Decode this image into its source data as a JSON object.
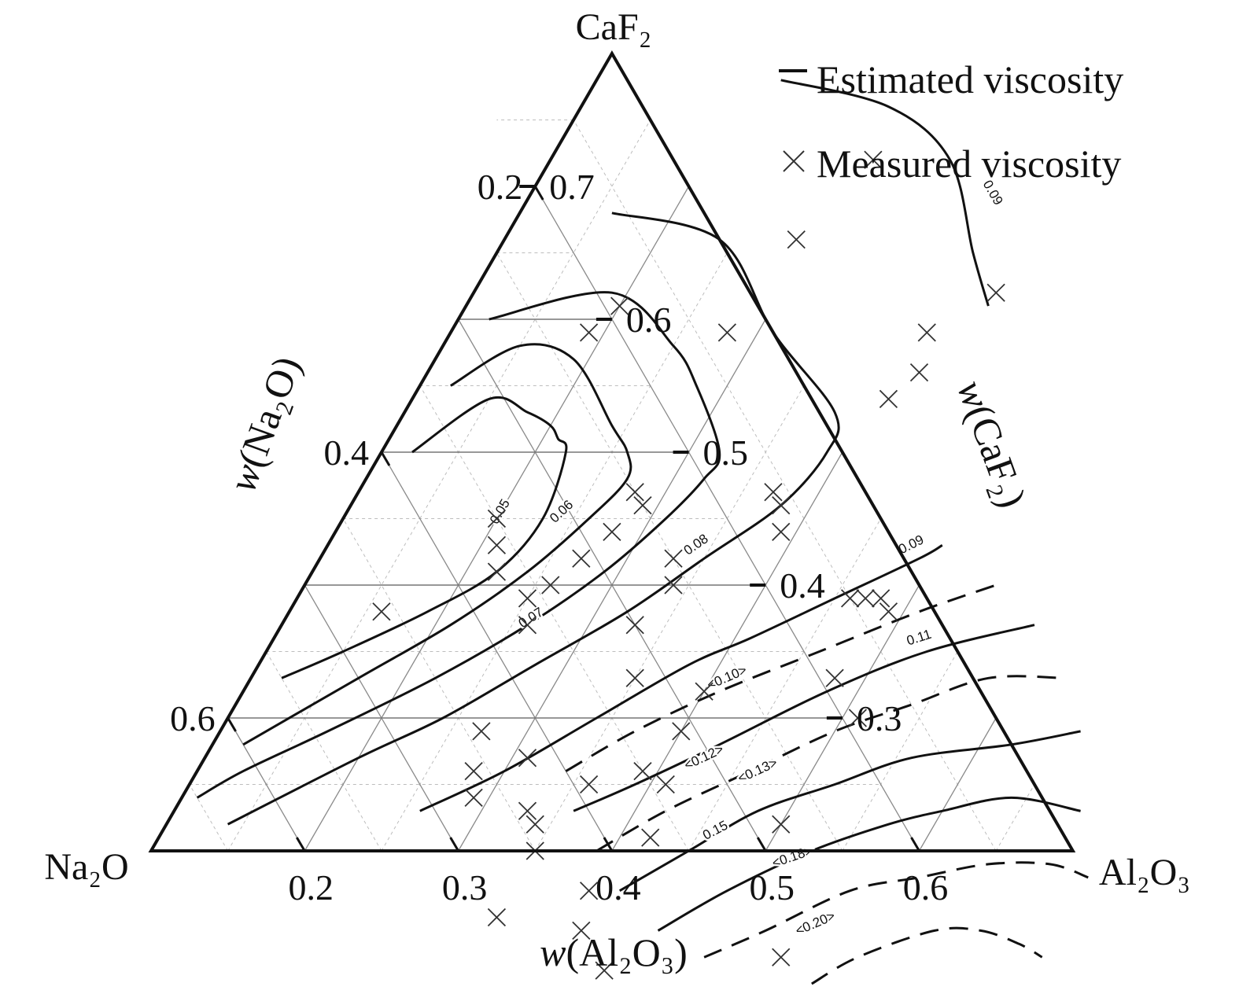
{
  "chart_data": {
    "type": "ternary",
    "components": {
      "top": "CaF₂",
      "left": "Na₂O",
      "right": "Al₂O₃"
    },
    "axes": {
      "bottom": {
        "title_prefix": "w",
        "title_body": "(Al₂O₃)",
        "ticks": [
          {
            "value": 0.2,
            "label": "0.2"
          },
          {
            "value": 0.3,
            "label": "0.3"
          },
          {
            "value": 0.4,
            "label": "0.4"
          },
          {
            "value": 0.5,
            "label": "0.5"
          },
          {
            "value": 0.6,
            "label": "0.6"
          }
        ]
      },
      "left": {
        "title_prefix": "w",
        "title_body": "(Na₂O)",
        "ticks": [
          {
            "value": 0.2,
            "label": "0.2"
          },
          {
            "value": 0.4,
            "label": "0.4"
          },
          {
            "value": 0.6,
            "label": "0.6"
          }
        ]
      },
      "right": {
        "title_prefix": "w",
        "title_body": "(CaF₂)",
        "ticks": [
          {
            "value": 0.7,
            "label": "0.7"
          },
          {
            "value": 0.6,
            "label": "0.6"
          },
          {
            "value": 0.5,
            "label": "0.5"
          },
          {
            "value": 0.4,
            "label": "0.4"
          },
          {
            "value": 0.3,
            "label": "0.3"
          }
        ]
      },
      "domain": {
        "CaF2": [
          0.2,
          0.8
        ],
        "Al2O3": [
          0.1,
          0.7
        ],
        "Na2O": [
          0.1,
          0.7
        ]
      }
    },
    "legend": {
      "position": "top-right",
      "items": [
        {
          "label": "Estimated viscosity",
          "marker": "line"
        },
        {
          "label": "Measured viscosity",
          "marker": "cross"
        }
      ]
    },
    "series": [
      {
        "label": "0.05",
        "style": "solid",
        "points": [
          [
            0.12,
            0.5
          ],
          [
            0.15,
            0.54
          ],
          [
            0.18,
            0.53
          ],
          [
            0.2,
            0.52
          ],
          [
            0.21,
            0.51
          ],
          [
            0.22,
            0.5
          ],
          [
            0.23,
            0.45
          ],
          [
            0.22,
            0.41
          ],
          [
            0.19,
            0.38
          ],
          [
            0.15,
            0.35
          ],
          [
            0.12,
            0.33
          ]
        ],
        "label_at": [
          0.2,
          0.455
        ]
      },
      {
        "label": "0.06",
        "style": "solid",
        "points": [
          [
            0.12,
            0.55
          ],
          [
            0.15,
            0.58
          ],
          [
            0.19,
            0.57
          ],
          [
            0.24,
            0.52
          ],
          [
            0.26,
            0.5
          ],
          [
            0.27,
            0.48
          ],
          [
            0.26,
            0.45
          ],
          [
            0.24,
            0.41
          ],
          [
            0.21,
            0.37
          ],
          [
            0.17,
            0.33
          ],
          [
            0.12,
            0.28
          ]
        ],
        "label_at": [
          0.24,
          0.455
        ]
      },
      {
        "label": "0.07",
        "style": "solid",
        "points": [
          [
            0.12,
            0.6
          ],
          [
            0.19,
            0.62
          ],
          [
            0.25,
            0.58
          ],
          [
            0.28,
            0.55
          ],
          [
            0.32,
            0.5
          ],
          [
            0.32,
            0.48
          ],
          [
            0.31,
            0.45
          ],
          [
            0.29,
            0.41
          ],
          [
            0.26,
            0.37
          ],
          [
            0.22,
            0.33
          ],
          [
            0.17,
            0.29
          ],
          [
            0.13,
            0.26
          ],
          [
            0.11,
            0.24
          ]
        ],
        "label_at": [
          0.26,
          0.375
        ]
      },
      {
        "label": "0.08",
        "style": "solid",
        "points": [
          [
            0.16,
            0.68
          ],
          [
            0.24,
            0.66
          ],
          [
            0.31,
            0.59
          ],
          [
            0.38,
            0.53
          ],
          [
            0.39,
            0.5
          ],
          [
            0.38,
            0.46
          ],
          [
            0.35,
            0.42
          ],
          [
            0.32,
            0.38
          ],
          [
            0.28,
            0.34
          ],
          [
            0.24,
            0.3
          ],
          [
            0.2,
            0.27
          ],
          [
            0.14,
            0.22
          ]
        ],
        "label_at": [
          0.34,
          0.43
        ]
      },
      {
        "label": "0.09",
        "style": "solid",
        "points": [
          [
            0.22,
            0.78
          ],
          [
            0.3,
            0.76
          ],
          [
            0.36,
            0.72
          ],
          [
            0.41,
            0.65
          ],
          [
            0.44,
            0.61
          ]
        ],
        "label_at": [
          0.4,
          0.695
        ]
      },
      {
        "label": "0.09",
        "style": "solid",
        "points": [
          [
            0.26,
            0.23
          ],
          [
            0.3,
            0.26
          ],
          [
            0.34,
            0.3
          ],
          [
            0.38,
            0.34
          ],
          [
            0.41,
            0.36
          ],
          [
            0.45,
            0.39
          ],
          [
            0.49,
            0.42
          ],
          [
            0.5,
            0.43
          ]
        ],
        "label_at": [
          0.48,
          0.43
        ]
      },
      {
        "label": "<0.10>",
        "style": "dashed",
        "points": [
          [
            0.34,
            0.26
          ],
          [
            0.37,
            0.29
          ],
          [
            0.41,
            0.32
          ],
          [
            0.46,
            0.35
          ],
          [
            0.51,
            0.38
          ],
          [
            0.55,
            0.4
          ]
        ],
        "label_at": [
          0.41,
          0.33
        ]
      },
      {
        "label": "0.11",
        "style": "solid",
        "points": [
          [
            0.36,
            0.23
          ],
          [
            0.39,
            0.25
          ],
          [
            0.43,
            0.28
          ],
          [
            0.48,
            0.32
          ],
          [
            0.53,
            0.35
          ],
          [
            0.59,
            0.37
          ]
        ],
        "label_at": [
          0.52,
          0.36
        ]
      },
      {
        "label": "<0.12>",
        "style": "dashed",
        "points": [
          [
            0.39,
            0.2
          ],
          [
            0.42,
            0.23
          ],
          [
            0.46,
            0.26
          ],
          [
            0.5,
            0.29
          ],
          [
            0.54,
            0.31
          ],
          [
            0.58,
            0.33
          ],
          [
            0.63,
            0.33
          ]
        ],
        "label_at": [
          0.425,
          0.27
        ]
      },
      {
        "label": "<0.13>",
        "style": "solid",
        "points": [
          [
            0.42,
            0.17
          ],
          [
            0.45,
            0.2
          ],
          [
            0.48,
            0.23
          ],
          [
            0.52,
            0.25
          ],
          [
            0.56,
            0.27
          ],
          [
            0.62,
            0.28
          ],
          [
            0.66,
            0.29
          ]
        ],
        "label_at": [
          0.465,
          0.26
        ]
      },
      {
        "label": "0.15",
        "style": "solid",
        "points": [
          [
            0.46,
            0.14
          ],
          [
            0.49,
            0.17
          ],
          [
            0.53,
            0.2
          ],
          [
            0.57,
            0.22
          ],
          [
            0.6,
            0.23
          ],
          [
            0.64,
            0.24
          ],
          [
            0.69,
            0.23
          ]
        ],
        "label_at": [
          0.46,
          0.215
        ]
      },
      {
        "label": "<0.18>",
        "style": "dashed",
        "points": [
          [
            0.5,
            0.12
          ],
          [
            0.53,
            0.14
          ],
          [
            0.57,
            0.17
          ],
          [
            0.61,
            0.18
          ],
          [
            0.65,
            0.19
          ],
          [
            0.69,
            0.19
          ],
          [
            0.72,
            0.18
          ]
        ],
        "label_at": [
          0.52,
          0.195
        ]
      },
      {
        "label": "<0.20>",
        "style": "dashed",
        "points": [
          [
            0.58,
            0.1
          ],
          [
            0.6,
            0.12
          ],
          [
            0.64,
            0.14
          ],
          [
            0.67,
            0.14
          ],
          [
            0.7,
            0.13
          ],
          [
            0.72,
            0.12
          ]
        ],
        "label_at": [
          0.56,
          0.145
        ]
      }
    ],
    "measured_points": [
      [
        0.31,
        0.72
      ],
      [
        0.44,
        0.62
      ],
      [
        0.29,
        0.66
      ],
      [
        0.2,
        0.61
      ],
      [
        0.19,
        0.59
      ],
      [
        0.28,
        0.59
      ],
      [
        0.41,
        0.59
      ],
      [
        0.42,
        0.56
      ],
      [
        0.41,
        0.54
      ],
      [
        0.2,
        0.45
      ],
      [
        0.21,
        0.43
      ],
      [
        0.22,
        0.41
      ],
      [
        0.28,
        0.47
      ],
      [
        0.29,
        0.46
      ],
      [
        0.37,
        0.47
      ],
      [
        0.38,
        0.46
      ],
      [
        0.39,
        0.44
      ],
      [
        0.28,
        0.44
      ],
      [
        0.27,
        0.42
      ],
      [
        0.26,
        0.4
      ],
      [
        0.25,
        0.39
      ],
      [
        0.33,
        0.42
      ],
      [
        0.34,
        0.4
      ],
      [
        0.16,
        0.38
      ],
      [
        0.26,
        0.37
      ],
      [
        0.33,
        0.37
      ],
      [
        0.46,
        0.39
      ],
      [
        0.47,
        0.39
      ],
      [
        0.48,
        0.39
      ],
      [
        0.49,
        0.38
      ],
      [
        0.35,
        0.33
      ],
      [
        0.48,
        0.33
      ],
      [
        0.4,
        0.32
      ],
      [
        0.4,
        0.29
      ],
      [
        0.51,
        0.3
      ],
      [
        0.27,
        0.29
      ],
      [
        0.31,
        0.27
      ],
      [
        0.28,
        0.26
      ],
      [
        0.29,
        0.24
      ],
      [
        0.36,
        0.25
      ],
      [
        0.39,
        0.26
      ],
      [
        0.41,
        0.25
      ],
      [
        0.33,
        0.23
      ],
      [
        0.34,
        0.22
      ],
      [
        0.35,
        0.2
      ],
      [
        0.42,
        0.21
      ],
      [
        0.5,
        0.22
      ],
      [
        0.35,
        0.15
      ],
      [
        0.41,
        0.14
      ],
      [
        0.4,
        0.17
      ],
      [
        0.44,
        0.11
      ],
      [
        0.55,
        0.12
      ]
    ]
  }
}
